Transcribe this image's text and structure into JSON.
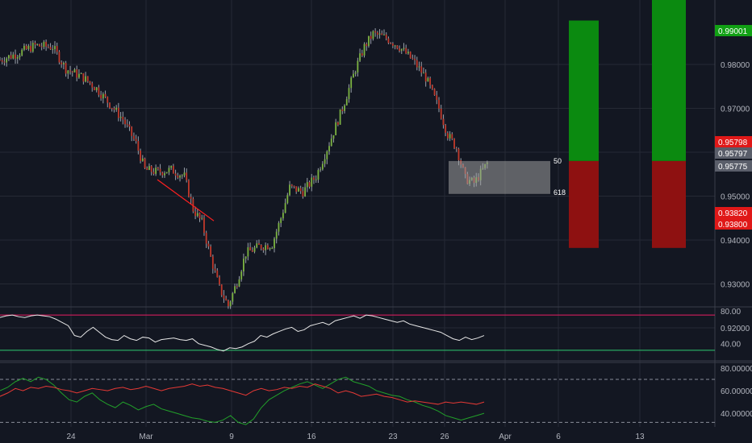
{
  "colors": {
    "background": "#131722",
    "grid": "#262a35",
    "up": "#7cb342",
    "down": "#c0392b",
    "wick": "#9aa0aa",
    "rsi_line": "#e8e8e8",
    "rsi_upper": "#e91e63",
    "rsi_lower": "#2ecc71",
    "stoch_k": "#22a02a",
    "stoch_d": "#e53935",
    "profit": "#0b8a10",
    "loss": "#8e1111",
    "fib_zone": "#9e9e9e",
    "trendline": "#ff2020",
    "axis_text": "#b2b5be"
  },
  "chart_data": [
    {
      "type": "candlestick",
      "pair_hint": "",
      "x_tick_labels": [
        "24",
        "Mar",
        "9",
        "16",
        "23",
        "26",
        "Apr",
        "6",
        "13"
      ],
      "y_tick_labels": [
        "0.98000",
        "0.97000",
        "0.96000",
        "0.95000",
        "0.94000",
        "0.93000",
        "0.92000"
      ],
      "ylim": [
        0.915,
        1.0
      ],
      "close_path": [
        [
          0,
          0.981
        ],
        [
          8,
          0.9825
        ],
        [
          16,
          0.9843
        ],
        [
          24,
          0.984
        ],
        [
          30,
          0.979
        ],
        [
          38,
          0.977
        ],
        [
          44,
          0.9745
        ],
        [
          50,
          0.971
        ],
        [
          56,
          0.9675
        ],
        [
          62,
          0.962
        ],
        [
          66,
          0.956
        ],
        [
          72,
          0.9555
        ],
        [
          78,
          0.956
        ],
        [
          84,
          0.9545
        ],
        [
          88,
          0.947
        ],
        [
          92,
          0.944
        ],
        [
          96,
          0.936
        ],
        [
          100,
          0.929
        ],
        [
          104,
          0.925
        ],
        [
          108,
          0.9305
        ],
        [
          112,
          0.937
        ],
        [
          118,
          0.9385
        ],
        [
          124,
          0.939
        ],
        [
          128,
          0.945
        ],
        [
          132,
          0.952
        ],
        [
          138,
          0.951
        ],
        [
          144,
          0.9545
        ],
        [
          150,
          0.962
        ],
        [
          156,
          0.97
        ],
        [
          162,
          0.979
        ],
        [
          166,
          0.984
        ],
        [
          170,
          0.987
        ],
        [
          176,
          0.986
        ],
        [
          182,
          0.984
        ],
        [
          188,
          0.981
        ],
        [
          194,
          0.977
        ],
        [
          200,
          0.97
        ],
        [
          204,
          0.964
        ],
        [
          208,
          0.961
        ],
        [
          212,
          0.954
        ],
        [
          216,
          0.953
        ],
        [
          220,
          0.956
        ],
        [
          222,
          0.9575
        ]
      ],
      "fib_zone": {
        "top": 0.958,
        "bottom": 0.9505,
        "labels": [
          "50",
          "618"
        ]
      },
      "trendline": {
        "from": [
          0.9545,
          0.9537
        ],
        "to": [
          0.944,
          0.9442
        ]
      },
      "positions": [
        {
          "entry": 0.958,
          "target": 0.99,
          "stop": 0.9382
        },
        {
          "entry": 0.958,
          "target": 1.002,
          "stop": 0.9382
        }
      ],
      "price_badges": [
        {
          "value": "0.99001",
          "kind": "profit"
        },
        {
          "value": "0.95798",
          "kind": "loss"
        },
        {
          "value": "0.95797",
          "kind": "neutral"
        },
        {
          "value": "0.95775",
          "kind": "neutral"
        },
        {
          "value": "0.93820",
          "kind": "loss"
        },
        {
          "value": "0.93800",
          "kind": "loss"
        }
      ]
    },
    {
      "type": "line",
      "indicator": "RSI",
      "ylim": [
        20,
        85
      ],
      "y_tick_labels": [
        "80.00",
        "40.00"
      ],
      "bands": [
        75,
        32
      ],
      "series": [
        {
          "values": [
            72,
            74,
            75,
            73,
            72,
            74,
            75,
            74,
            73,
            70,
            66,
            62,
            50,
            48,
            55,
            60,
            54,
            48,
            45,
            44,
            50,
            46,
            44,
            48,
            47,
            42,
            45,
            46,
            47,
            45,
            44,
            46,
            40,
            38,
            36,
            33,
            31,
            35,
            34,
            36,
            40,
            43,
            50,
            48,
            52,
            55,
            58,
            60,
            55,
            57,
            62,
            64,
            66,
            63,
            68,
            70,
            72,
            74,
            71,
            75,
            74,
            72,
            70,
            68,
            66,
            68,
            64,
            62,
            60,
            58,
            56,
            54,
            50,
            46,
            44,
            48,
            45,
            47,
            50
          ]
        }
      ]
    },
    {
      "type": "line",
      "indicator": "Stochastic",
      "ylim": [
        28,
        85
      ],
      "y_tick_labels": [
        "80.00000",
        "60.00000",
        "40.00000"
      ],
      "bands": [
        70,
        32
      ],
      "series": [
        {
          "values": [
            60,
            63,
            68,
            71,
            68,
            72,
            70,
            65,
            58,
            52,
            50,
            55,
            58,
            52,
            48,
            45,
            50,
            47,
            43,
            46,
            48,
            44,
            42,
            40,
            38,
            36,
            35,
            33,
            32,
            34,
            38,
            32,
            30,
            35,
            45,
            52,
            56,
            60,
            63,
            66,
            68,
            65,
            62,
            66,
            70,
            72,
            68,
            66,
            64,
            60,
            58,
            56,
            55,
            52,
            50,
            47,
            45,
            42,
            38,
            36,
            34,
            36,
            38,
            40
          ]
        },
        {
          "values": [
            55,
            58,
            62,
            60,
            63,
            62,
            64,
            63,
            61,
            60,
            58,
            60,
            62,
            61,
            60,
            62,
            63,
            61,
            62,
            64,
            62,
            60,
            62,
            63,
            64,
            66,
            64,
            65,
            63,
            62,
            60,
            58,
            56,
            60,
            62,
            60,
            61,
            63,
            62,
            64,
            63,
            66,
            64,
            62,
            58,
            60,
            58,
            55,
            56,
            57,
            55,
            54,
            52,
            50,
            51,
            50,
            49,
            48,
            50,
            49,
            50,
            49,
            48,
            50
          ]
        }
      ]
    }
  ]
}
